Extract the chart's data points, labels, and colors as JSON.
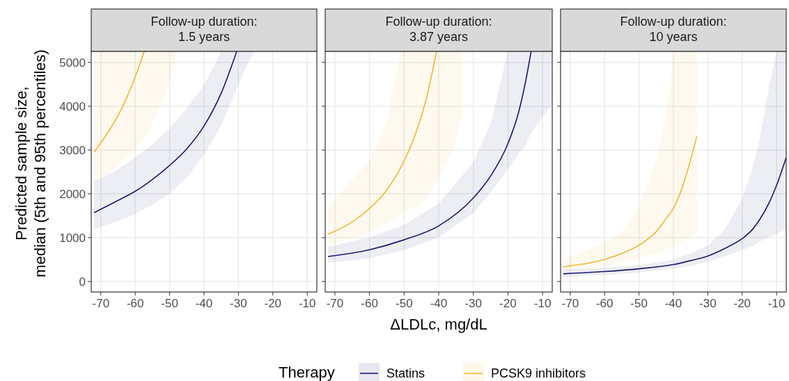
{
  "chart_data": [
    {
      "type": "line",
      "title": "Follow-up duration:\n1.5 years",
      "ylabel": "Predicted sample size,\nmedian (5th and 95th percentiles)",
      "legend_title": "Therapy",
      "legend": "bottom",
      "grid": true,
      "xlim": [
        -72.8,
        -7.2
      ],
      "ylim": [
        -240,
        5250
      ],
      "xticks": [
        -70,
        -60,
        -50,
        -40,
        -30,
        -20,
        -10
      ],
      "yticks": [
        0,
        1000,
        2000,
        3000,
        4000,
        5000
      ],
      "series": [
        {
          "name": "Statins",
          "color": "#191970",
          "x": [
            -72,
            -65,
            -60,
            -55,
            -50,
            -45,
            -40,
            -35,
            -30.5,
            -28,
            -25.5
          ],
          "values": [
            1570,
            1850,
            2060,
            2330,
            2650,
            3030,
            3550,
            4300,
            5250,
            null,
            null
          ],
          "lower": [
            1190,
            1380,
            1540,
            1750,
            2010,
            2380,
            2890,
            3570,
            4400,
            4850,
            5250
          ],
          "upper": [
            2280,
            2560,
            2830,
            3130,
            3490,
            3950,
            4480,
            5250,
            5250,
            5250,
            5250
          ]
        },
        {
          "name": "PCSK9 inhibitors",
          "color": "#f5b52e",
          "x": [
            -72,
            -67,
            -64,
            -61,
            -57.4,
            -55,
            -51,
            -47.5
          ],
          "values": [
            2950,
            3520,
            3940,
            4470,
            5250,
            null,
            null,
            null
          ],
          "lower": [
            2250,
            2500,
            2760,
            2940,
            3250,
            3620,
            4300,
            5250
          ],
          "upper": [
            5250,
            5250,
            5250,
            5250,
            5250,
            5250,
            5250,
            5250
          ]
        }
      ]
    },
    {
      "type": "line",
      "title": "Follow-up duration:\n3.87 years",
      "xlabel": "ΔLDLc, mg/dL",
      "grid": true,
      "tick_labels": "x",
      "xlim": [
        -72.8,
        -7.2
      ],
      "ylim": [
        -240,
        5250
      ],
      "xticks": [
        -70,
        -60,
        -50,
        -40,
        -30,
        -20,
        -10
      ],
      "yticks": [
        0,
        1000,
        2000,
        3000,
        4000,
        5000
      ],
      "series": [
        {
          "color": "#191970",
          "x": [
            -72,
            -60,
            -50,
            -40,
            -30,
            -25,
            -20,
            -17,
            -15,
            -13.3,
            -7.2
          ],
          "values": [
            570,
            725,
            952,
            1270,
            1905,
            2408,
            3148,
            3837,
            4524,
            5250,
            null
          ],
          "lower": [
            430,
            529,
            714,
            1005,
            1561,
            2037,
            2566,
            2900,
            3095,
            3400,
            4050
          ],
          "upper": [
            794,
            1005,
            1297,
            1772,
            2725,
            3600,
            5250,
            5250,
            5250,
            5250,
            5250
          ]
        },
        {
          "color": "#f5b52e",
          "x": [
            -72,
            -66,
            -60,
            -55,
            -51,
            -47,
            -44,
            -40.6,
            -36,
            -33.2
          ],
          "values": [
            1080,
            1310,
            1667,
            2090,
            2600,
            3307,
            4048,
            5250,
            null,
            null
          ],
          "lower": [
            800,
            970,
            1138,
            1350,
            1540,
            1700,
            1850,
            2300,
            3000,
            3730
          ],
          "upper": [
            1680,
            2254,
            2725,
            3700,
            5250,
            5250,
            5250,
            5250,
            5250,
            5250
          ]
        }
      ]
    },
    {
      "type": "line",
      "title": "Follow-up duration:\n10 years",
      "grid": true,
      "tick_labels": "x",
      "xlim": [
        -72.8,
        -7.2
      ],
      "ylim": [
        -240,
        5250
      ],
      "xticks": [
        -70,
        -60,
        -50,
        -40,
        -30,
        -20,
        -10
      ],
      "yticks": [
        0,
        1000,
        2000,
        3000,
        4000,
        5000
      ],
      "series": [
        {
          "color": "#191970",
          "x": [
            -72,
            -60,
            -50,
            -40,
            -35,
            -30,
            -25,
            -20,
            -17,
            -15,
            -12,
            -10,
            -7.2
          ],
          "values": [
            175,
            227,
            290,
            386,
            476,
            582,
            757,
            979,
            1190,
            1402,
            1825,
            2196,
            2830
          ],
          "lower": [
            106,
            150,
            206,
            290,
            360,
            450,
            587,
            714,
            810,
            905,
            1020,
            1085,
            1190
          ],
          "upper": [
            270,
            310,
            370,
            503,
            640,
            820,
            1190,
            1878,
            2600,
            3200,
            4520,
            5250,
            5250
          ]
        },
        {
          "color": "#f5b52e",
          "x": [
            -72,
            -70,
            -60,
            -55,
            -50,
            -45,
            -42,
            -40,
            -37,
            -35,
            -33.2
          ],
          "values": [
            330,
            354,
            503,
            640,
            830,
            1138,
            1450,
            1667,
            2249,
            2778,
            3317
          ],
          "lower": [
            240,
            260,
            349,
            430,
            529,
            640,
            730,
            794,
            930,
            1030,
            1138
          ],
          "upper": [
            520,
            560,
            870,
            1150,
            1700,
            2750,
            3840,
            5250,
            5250,
            5250,
            5250
          ]
        }
      ]
    }
  ]
}
